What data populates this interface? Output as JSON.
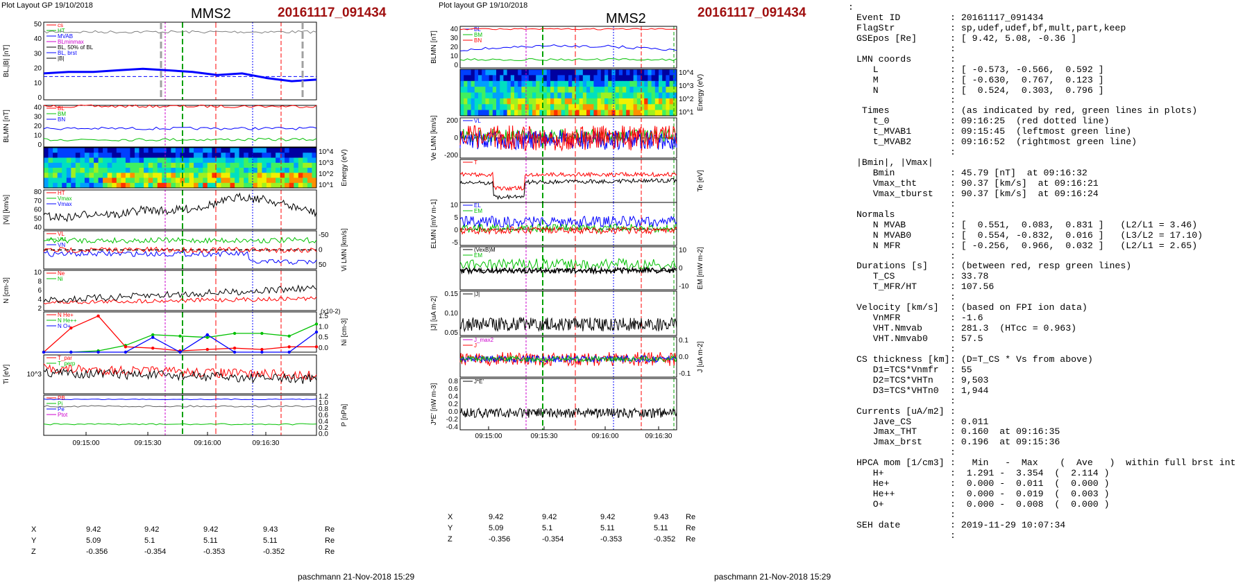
{
  "left_figure": {
    "header": "Plot Layout GP 19/10/2018",
    "spacecraft": "MMS2",
    "event_id": "20161117_091434",
    "footer": "paschmann 21-Nov-2018 15:29"
  },
  "right_figure": {
    "header": "Plot layout GP 19/10/2018",
    "spacecraft": "MMS2",
    "event_id": "20161117_091434",
    "footer": "paschmann 21-Nov-2018 15:29"
  },
  "time_ticks": [
    "09:15:00",
    "09:15:30",
    "09:16:00",
    "09:16:30"
  ],
  "coords": {
    "rows": [
      {
        "label": "X",
        "values": [
          "9.42",
          "9.42",
          "9.42",
          "9.43"
        ],
        "unit": "Re"
      },
      {
        "label": "Y",
        "values": [
          "5.09",
          "5.1",
          "5.11",
          "5.11"
        ],
        "unit": "Re"
      },
      {
        "label": "Z",
        "values": [
          "-0.356",
          "-0.354",
          "-0.353",
          "-0.352"
        ],
        "unit": "Re"
      }
    ]
  },
  "colors": {
    "event_red": "#a01010",
    "red": "#ff0000",
    "green": "#00c000",
    "blue": "#0000ff",
    "magenta": "#cc00cc",
    "black": "#000000"
  },
  "chart_data": [
    {
      "type": "line",
      "figure": "left",
      "panels": [
        {
          "ylabel": "BL,|B| [nT]",
          "ylim": [
            0,
            50
          ],
          "ticks": [
            "0",
            "10",
            "20",
            "30",
            "40",
            "50"
          ],
          "legend": [
            "cs",
            "HT",
            "MVAB",
            "BLminmax",
            "BL, 50% of BL",
            "BL, brst",
            "|B|"
          ],
          "series": [
            {
              "name": "BL brst",
              "color": "blue",
              "values": [
                17,
                18,
                18,
                19,
                20,
                19,
                18,
                16,
                17,
                14,
                12,
                13
              ]
            }
          ]
        },
        {
          "ylabel": "BLMN [nT]",
          "ylim": [
            0,
            40
          ],
          "ticks": [
            "0",
            "10",
            "20",
            "30",
            "40"
          ],
          "legend": [
            "BL",
            "BM",
            "BN"
          ],
          "series": [
            {
              "name": "BL",
              "color": "red",
              "values": [
                44,
                44,
                44,
                44,
                44
              ]
            },
            {
              "name": "BM",
              "color": "blue",
              "values": [
                20,
                19,
                20,
                19,
                15
              ]
            },
            {
              "name": "BN",
              "color": "green",
              "values": [
                8,
                8,
                8,
                8,
                7
              ]
            }
          ]
        },
        {
          "ylabel": "Energy (eV)",
          "ticks": [
            "10^1",
            "10^2",
            "10^3",
            "10^4"
          ],
          "type": "heatmap"
        },
        {
          "ylabel": "|Vi| [km/s]",
          "ylim": [
            30,
            90
          ],
          "ticks": [
            "40",
            "50",
            "60",
            "70",
            "80"
          ],
          "legend": [
            "HT",
            "Vmax",
            "Vmax"
          ],
          "series": [
            {
              "name": "|Vi|",
              "color": "black",
              "values": [
                50,
                48,
                55,
                52,
                60,
                58,
                62,
                70,
                80,
                75,
                65,
                55
              ]
            }
          ]
        },
        {
          "ylabel": "Vi LMN [km/s]",
          "ylim": [
            -75,
            75
          ],
          "ticks": [
            "50",
            "0",
            "-50"
          ],
          "legend": [
            "VL",
            "VM",
            "VN"
          ]
        },
        {
          "ylabel": "N [cm-3]",
          "ylim": [
            0,
            10
          ],
          "ticks": [
            "2",
            "4",
            "6",
            "8",
            "10"
          ],
          "legend": [
            "Ne",
            "Ni"
          ]
        },
        {
          "ylabel": "Ni [cm-3]",
          "ylim": [
            0,
            1.5
          ],
          "ticks": [
            "0.0",
            "0.5",
            "1.0",
            "1.5"
          ],
          "annotation": "(x10-2)",
          "legend": [
            "N He+",
            "N He++",
            "N O+"
          ],
          "series": [
            {
              "name": "N He+",
              "color": "green",
              "values": [
                0.0,
                0.0,
                0.05,
                0.25,
                0.65,
                0.6,
                0.55,
                0.7,
                0.7,
                0.6,
                1.05
              ]
            },
            {
              "name": "N He++",
              "color": "red",
              "values": [
                0.0,
                0.9,
                1.35,
                0.2,
                0.15,
                0.05,
                0.1,
                0.15,
                0.1,
                0.2,
                0.2
              ]
            },
            {
              "name": "N O+",
              "color": "blue",
              "values": [
                0.0,
                0.0,
                0.0,
                0.0,
                0.55,
                0.0,
                0.65,
                0.0,
                0.0,
                0.0,
                0.75
              ]
            }
          ]
        },
        {
          "ylabel": "Ti [eV]",
          "ticks": [
            "10^3"
          ],
          "legend": [
            "T_par",
            "T_perp"
          ]
        },
        {
          "ylabel": "P [nPa]",
          "ylim": [
            0,
            1.2
          ],
          "ticks": [
            "0.0",
            "0.2",
            "0.4",
            "0.6",
            "0.8",
            "1.0",
            "1.2"
          ],
          "legend": [
            "PB",
            "Pi",
            "Pe",
            "Ptot"
          ]
        }
      ]
    },
    {
      "type": "line",
      "figure": "right",
      "panels": [
        {
          "ylabel": "BLMN [nT]",
          "ylim": [
            0,
            45
          ],
          "ticks": [
            "0",
            "10",
            "20",
            "30",
            "40"
          ],
          "legend": [
            "BL",
            "BM",
            "BN"
          ]
        },
        {
          "ylabel": "Energy (eV)",
          "ticks": [
            "10^1",
            "10^2",
            "10^3",
            "10^4"
          ],
          "type": "heatmap"
        },
        {
          "ylabel": "Ve LMN [km/s]",
          "ylim": [
            -300,
            300
          ],
          "ticks": [
            "-200",
            "0",
            "200"
          ],
          "legend": [
            "VL"
          ]
        },
        {
          "ylabel": "Te [eV]",
          "legend": [
            "T"
          ]
        },
        {
          "ylabel": "ELMN [mV m-1]",
          "ylim": [
            -6,
            12
          ],
          "ticks": [
            "-5",
            "0",
            "5",
            "10"
          ],
          "legend": [
            "EL",
            "EM"
          ]
        },
        {
          "ylabel": "EM [mW m-2]",
          "ylim": [
            -12,
            12
          ],
          "ticks": [
            "-10",
            "0",
            "10"
          ],
          "legend": [
            "(VexB)M",
            "EM"
          ]
        },
        {
          "ylabel": "|J| [uA m-2]",
          "ylim": [
            0,
            0.18
          ],
          "ticks": [
            "0.05",
            "0.10",
            "0.15"
          ],
          "legend": [
            "|J|"
          ]
        },
        {
          "ylabel": "J [uA m-2]",
          "ylim": [
            -0.15,
            0.15
          ],
          "ticks": [
            "-0.1",
            "0.0",
            "0.1"
          ],
          "legend": [
            "J_max2",
            "J"
          ]
        },
        {
          "ylabel": "J*E' [nW m-3]",
          "ylim": [
            -0.4,
            0.8
          ],
          "ticks": [
            "-0.4",
            "-0.2",
            "0.0",
            "0.2",
            "0.4",
            "0.6",
            "0.8"
          ],
          "legend": [
            "J*E'"
          ]
        }
      ]
    }
  ],
  "info_panel": {
    "rows": [
      {
        "key": "",
        "val": ""
      },
      {
        "key": "Event ID",
        "val": ": 20161117_091434"
      },
      {
        "key": "FlagStr",
        "val": ": sp,udef,udef,bf,mult,part,keep"
      },
      {
        "key": "GSEpos [Re]",
        "val": ": [ 9.42, 5.08, -0.36 ]"
      },
      {
        "key": "",
        "val": ":"
      },
      {
        "key": "LMN coords",
        "val": ":"
      },
      {
        "key": "   L",
        "val": ": [ -0.573, -0.566,  0.592 ]"
      },
      {
        "key": "   M",
        "val": ": [ -0.630,  0.767,  0.123 ]"
      },
      {
        "key": "   N",
        "val": ": [  0.524,  0.303,  0.796 ]"
      },
      {
        "key": "",
        "val": ":"
      },
      {
        "key": " Times",
        "val": ": (as indicated by red, green lines in plots)"
      },
      {
        "key": "   t_0",
        "val": ": 09:16:25  (red dotted line)"
      },
      {
        "key": "   t_MVAB1",
        "val": ": 09:15:45  (leftmost green line)"
      },
      {
        "key": "   t_MVAB2",
        "val": ": 09:16:52  (rightmost green line)"
      },
      {
        "key": "",
        "val": ":"
      },
      {
        "key": "|Bmin|, |Vmax|",
        "val": ""
      },
      {
        "key": "   Bmin",
        "val": ": 45.79 [nT]  at 09:16:32"
      },
      {
        "key": "   Vmax_tht",
        "val": ": 90.37 [km/s]  at 09:16:21"
      },
      {
        "key": "   Vmax_tburst",
        "val": ": 90.37 [km/s]  at 09:16:24"
      },
      {
        "key": "",
        "val": ":"
      },
      {
        "key": "Normals",
        "val": ":"
      },
      {
        "key": "   N MVAB",
        "val": ": [  0.551,  0.083,  0.831 ]   (L2/L1 = 3.46)"
      },
      {
        "key": "   N MVAB0",
        "val": ": [  0.554, -0.832,  0.016 ]   (L3/L2 = 17.10)"
      },
      {
        "key": "   N MFR",
        "val": ": [ -0.256,  0.966,  0.032 ]   (L2/L1 = 2.65)"
      },
      {
        "key": "",
        "val": ":"
      },
      {
        "key": "Durations [s]",
        "val": ": (between red, resp green lines)"
      },
      {
        "key": "   T_CS",
        "val": ": 33.78"
      },
      {
        "key": "   T_MFR/HT",
        "val": ": 107.56"
      },
      {
        "key": "",
        "val": ":"
      },
      {
        "key": "Velocity [km/s]",
        "val": ": (based on FPI ion data)"
      },
      {
        "key": "   VnMFR",
        "val": ": -1.6"
      },
      {
        "key": "   VHT.Nmvab",
        "val": ": 281.3  (HTcc = 0.963)"
      },
      {
        "key": "   VHT.Nmvab0",
        "val": ": 57.5"
      },
      {
        "key": "",
        "val": ":"
      },
      {
        "key": "CS thickness [km]",
        "val": ": (D=T_CS * Vs from above)"
      },
      {
        "key": "   D1=TCS*Vnmfr",
        "val": ": 55"
      },
      {
        "key": "   D2=TCS*VHTn",
        "val": ": 9,503"
      },
      {
        "key": "   D3=TCS*VHTn0",
        "val": ": 1,944"
      },
      {
        "key": "",
        "val": ":"
      },
      {
        "key": "Currents [uA/m2]",
        "val": ":"
      },
      {
        "key": "   Jave_CS",
        "val": ": 0.011"
      },
      {
        "key": "   Jmax_THT",
        "val": ": 0.160  at 09:16:35"
      },
      {
        "key": "   Jmax_brst",
        "val": ": 0.196  at 09:15:36"
      },
      {
        "key": "",
        "val": ":"
      },
      {
        "key": "HPCA mom [1/cm3]",
        "val": ":   Min   -  Max    (  Ave   )  within full brst int"
      },
      {
        "key": "   H+",
        "val": ":  1.291 -  3.354  (  2.114 )"
      },
      {
        "key": "   He+",
        "val": ":  0.000 -  0.011  (  0.000 )"
      },
      {
        "key": "   He++",
        "val": ":  0.000 -  0.019  (  0.003 )"
      },
      {
        "key": "   O+",
        "val": ":  0.000 -  0.008  (  0.000 )"
      },
      {
        "key": "",
        "val": ":"
      },
      {
        "key": "SEH date",
        "val": ": 2019-11-29 10:07:34"
      },
      {
        "key": "",
        "val": ":"
      }
    ]
  }
}
